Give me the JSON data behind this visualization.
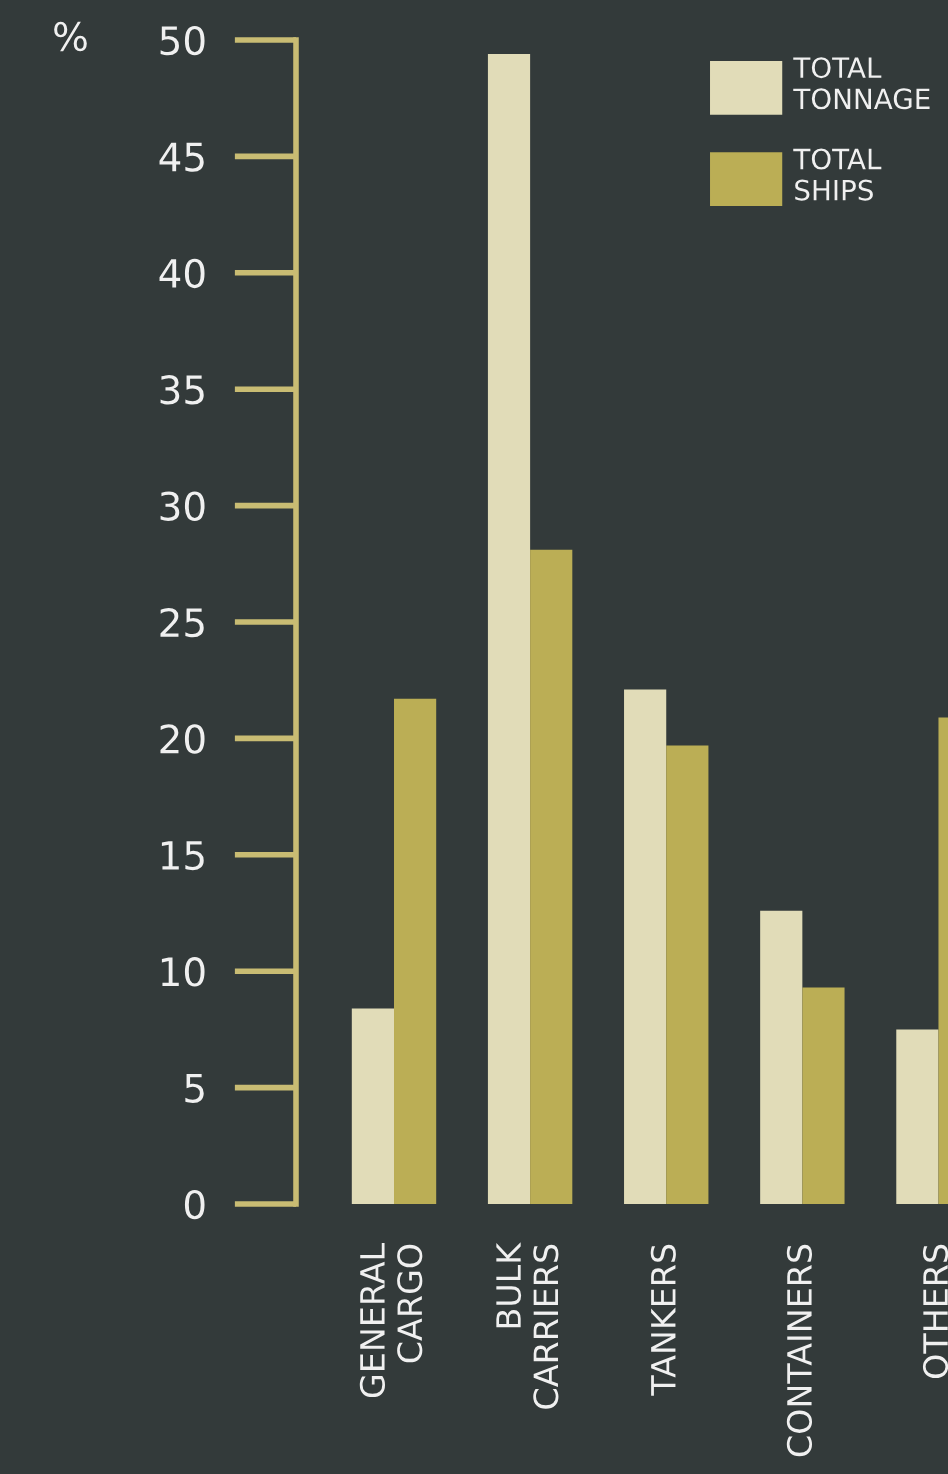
{
  "chart_data": {
    "type": "bar",
    "ylabel": "%",
    "categories": [
      "GENERAL\nCARGO",
      "BULK\nCARRIERS",
      "TANKERS",
      "CONTAINERS",
      "OTHERS"
    ],
    "series": [
      {
        "name": "TOTAL\nTONNAGE",
        "color": "#e1dcb8",
        "values": [
          8.4,
          49.4,
          22.1,
          12.6,
          7.5
        ]
      },
      {
        "name": "TOTAL\nSHIPS",
        "color": "#bbae55",
        "values": [
          21.7,
          28.1,
          19.7,
          9.3,
          20.9
        ]
      }
    ],
    "ylim": [
      0,
      50
    ],
    "yticks": [
      0,
      5,
      10,
      15,
      20,
      25,
      30,
      35,
      40,
      45,
      50
    ],
    "grid": false,
    "legend": "top right"
  }
}
